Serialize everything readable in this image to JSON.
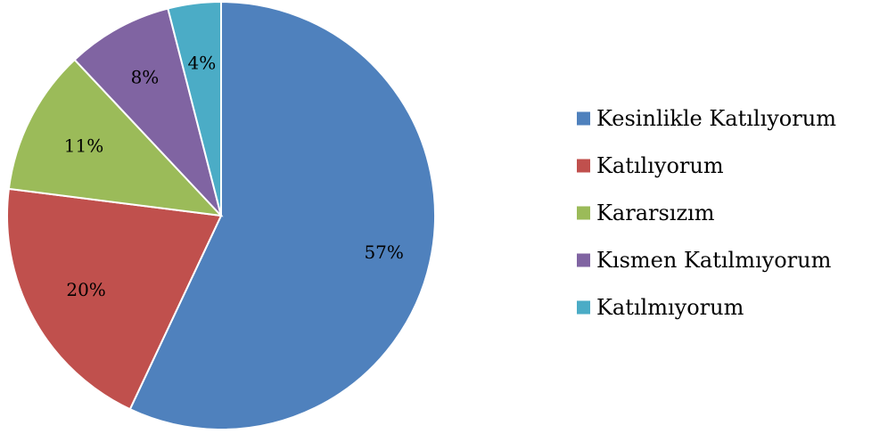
{
  "chart_data": {
    "type": "pie",
    "title": "",
    "categories": [
      "Kesinlikle Katılıyorum",
      "Katılıyorum",
      "Kararsızım",
      "Kısmen Katılmıyorum",
      "Katılmıyorum"
    ],
    "values": [
      57,
      20,
      11,
      8,
      4
    ],
    "labels": [
      "57%",
      "20%",
      "11%",
      "8%",
      "4%"
    ],
    "colors": [
      "#4F81BD",
      "#C0504D",
      "#9BBB59",
      "#8064A2",
      "#4BACC6"
    ],
    "start_angle_deg": 0,
    "direction": "clockwise",
    "legend_position": "right"
  }
}
